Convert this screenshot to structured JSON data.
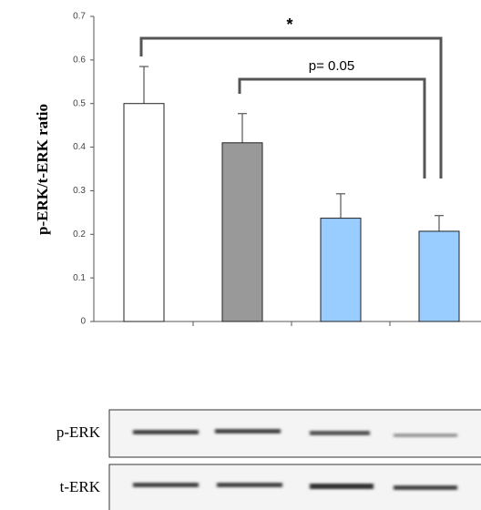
{
  "chart_data": {
    "type": "bar",
    "ylabel": "p-ERK/t-ERK ratio",
    "categories": [
      null,
      null,
      null,
      null
    ],
    "values": [
      0.5,
      0.41,
      0.237,
      0.207
    ],
    "errors": [
      0.085,
      0.067,
      0.056,
      0.036
    ],
    "colors": [
      "#ffffff",
      "#999999",
      "#99ccff",
      "#99ccff"
    ],
    "ylim": [
      0,
      0.7
    ],
    "yticks": [
      0,
      0.1,
      0.2,
      0.3,
      0.4,
      0.5,
      0.6,
      0.7
    ],
    "annotations": [
      "*",
      "p= 0.05"
    ]
  },
  "blot": {
    "rows": [
      "p-ERK",
      "t-ERK"
    ]
  }
}
